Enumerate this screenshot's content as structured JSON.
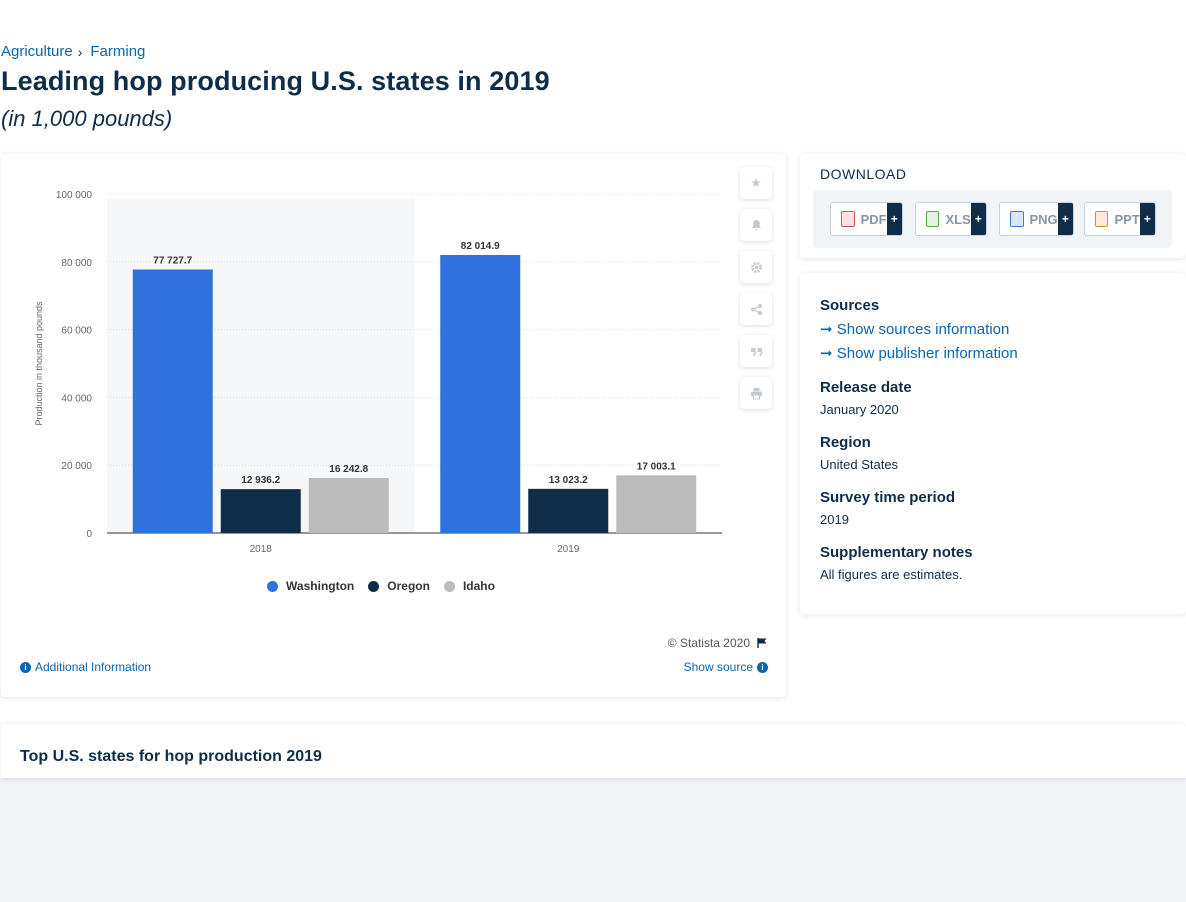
{
  "breadcrumb": {
    "items": [
      "Agriculture",
      "Farming"
    ],
    "separator": "›"
  },
  "page": {
    "title": "Leading hop producing U.S. states in 2019",
    "subtitle": "(in 1,000 pounds)"
  },
  "chart_data": {
    "type": "bar",
    "categories": [
      "2018",
      "2019"
    ],
    "series": [
      {
        "name": "Washington",
        "color": "#2f72de",
        "values": [
          77727.7,
          82014.9
        ],
        "labels": [
          "77 727.7",
          "82 014.9"
        ]
      },
      {
        "name": "Oregon",
        "color": "#0f2c48",
        "values": [
          12936.2,
          13023.2
        ],
        "labels": [
          "12 936.2",
          "13 023.2"
        ]
      },
      {
        "name": "Idaho",
        "color": "#bbbbbb",
        "values": [
          16242.8,
          17003.1
        ],
        "labels": [
          "16 242.8",
          "17 003.1"
        ]
      }
    ],
    "ylabel": "Production in thousand pounds",
    "xlabel": "",
    "ylim": [
      0,
      100000
    ],
    "yticks": [
      0,
      20000,
      40000,
      60000,
      80000,
      100000
    ],
    "ytick_labels": [
      "0",
      "20 000",
      "40 000",
      "60 000",
      "80 000",
      "100 000"
    ],
    "grid": true,
    "legend_position": "bottom"
  },
  "chart_footer": {
    "copyright": "© Statista 2020",
    "additional_info": "Additional Information",
    "show_source": "Show source"
  },
  "tools": [
    "star-icon",
    "bell-icon",
    "gear-icon",
    "share-icon",
    "quote-icon",
    "print-icon"
  ],
  "download": {
    "title": "DOWNLOAD",
    "formats": [
      {
        "label": "PDF",
        "color": "#e05050"
      },
      {
        "label": "XLS",
        "color": "#5aa74a"
      },
      {
        "label": "PNG",
        "color": "#3a7bd5"
      },
      {
        "label": "PPT",
        "color": "#e08a2e"
      }
    ],
    "plus": "+"
  },
  "meta": {
    "sources_label": "Sources",
    "show_sources": "Show sources information",
    "show_publisher": "Show publisher information",
    "release_label": "Release date",
    "release_value": "January 2020",
    "region_label": "Region",
    "region_value": "United States",
    "period_label": "Survey time period",
    "period_value": "2019",
    "notes_label": "Supplementary notes",
    "notes_value": "All figures are estimates."
  },
  "related": {
    "title": "Top U.S. states for hop production 2019"
  }
}
